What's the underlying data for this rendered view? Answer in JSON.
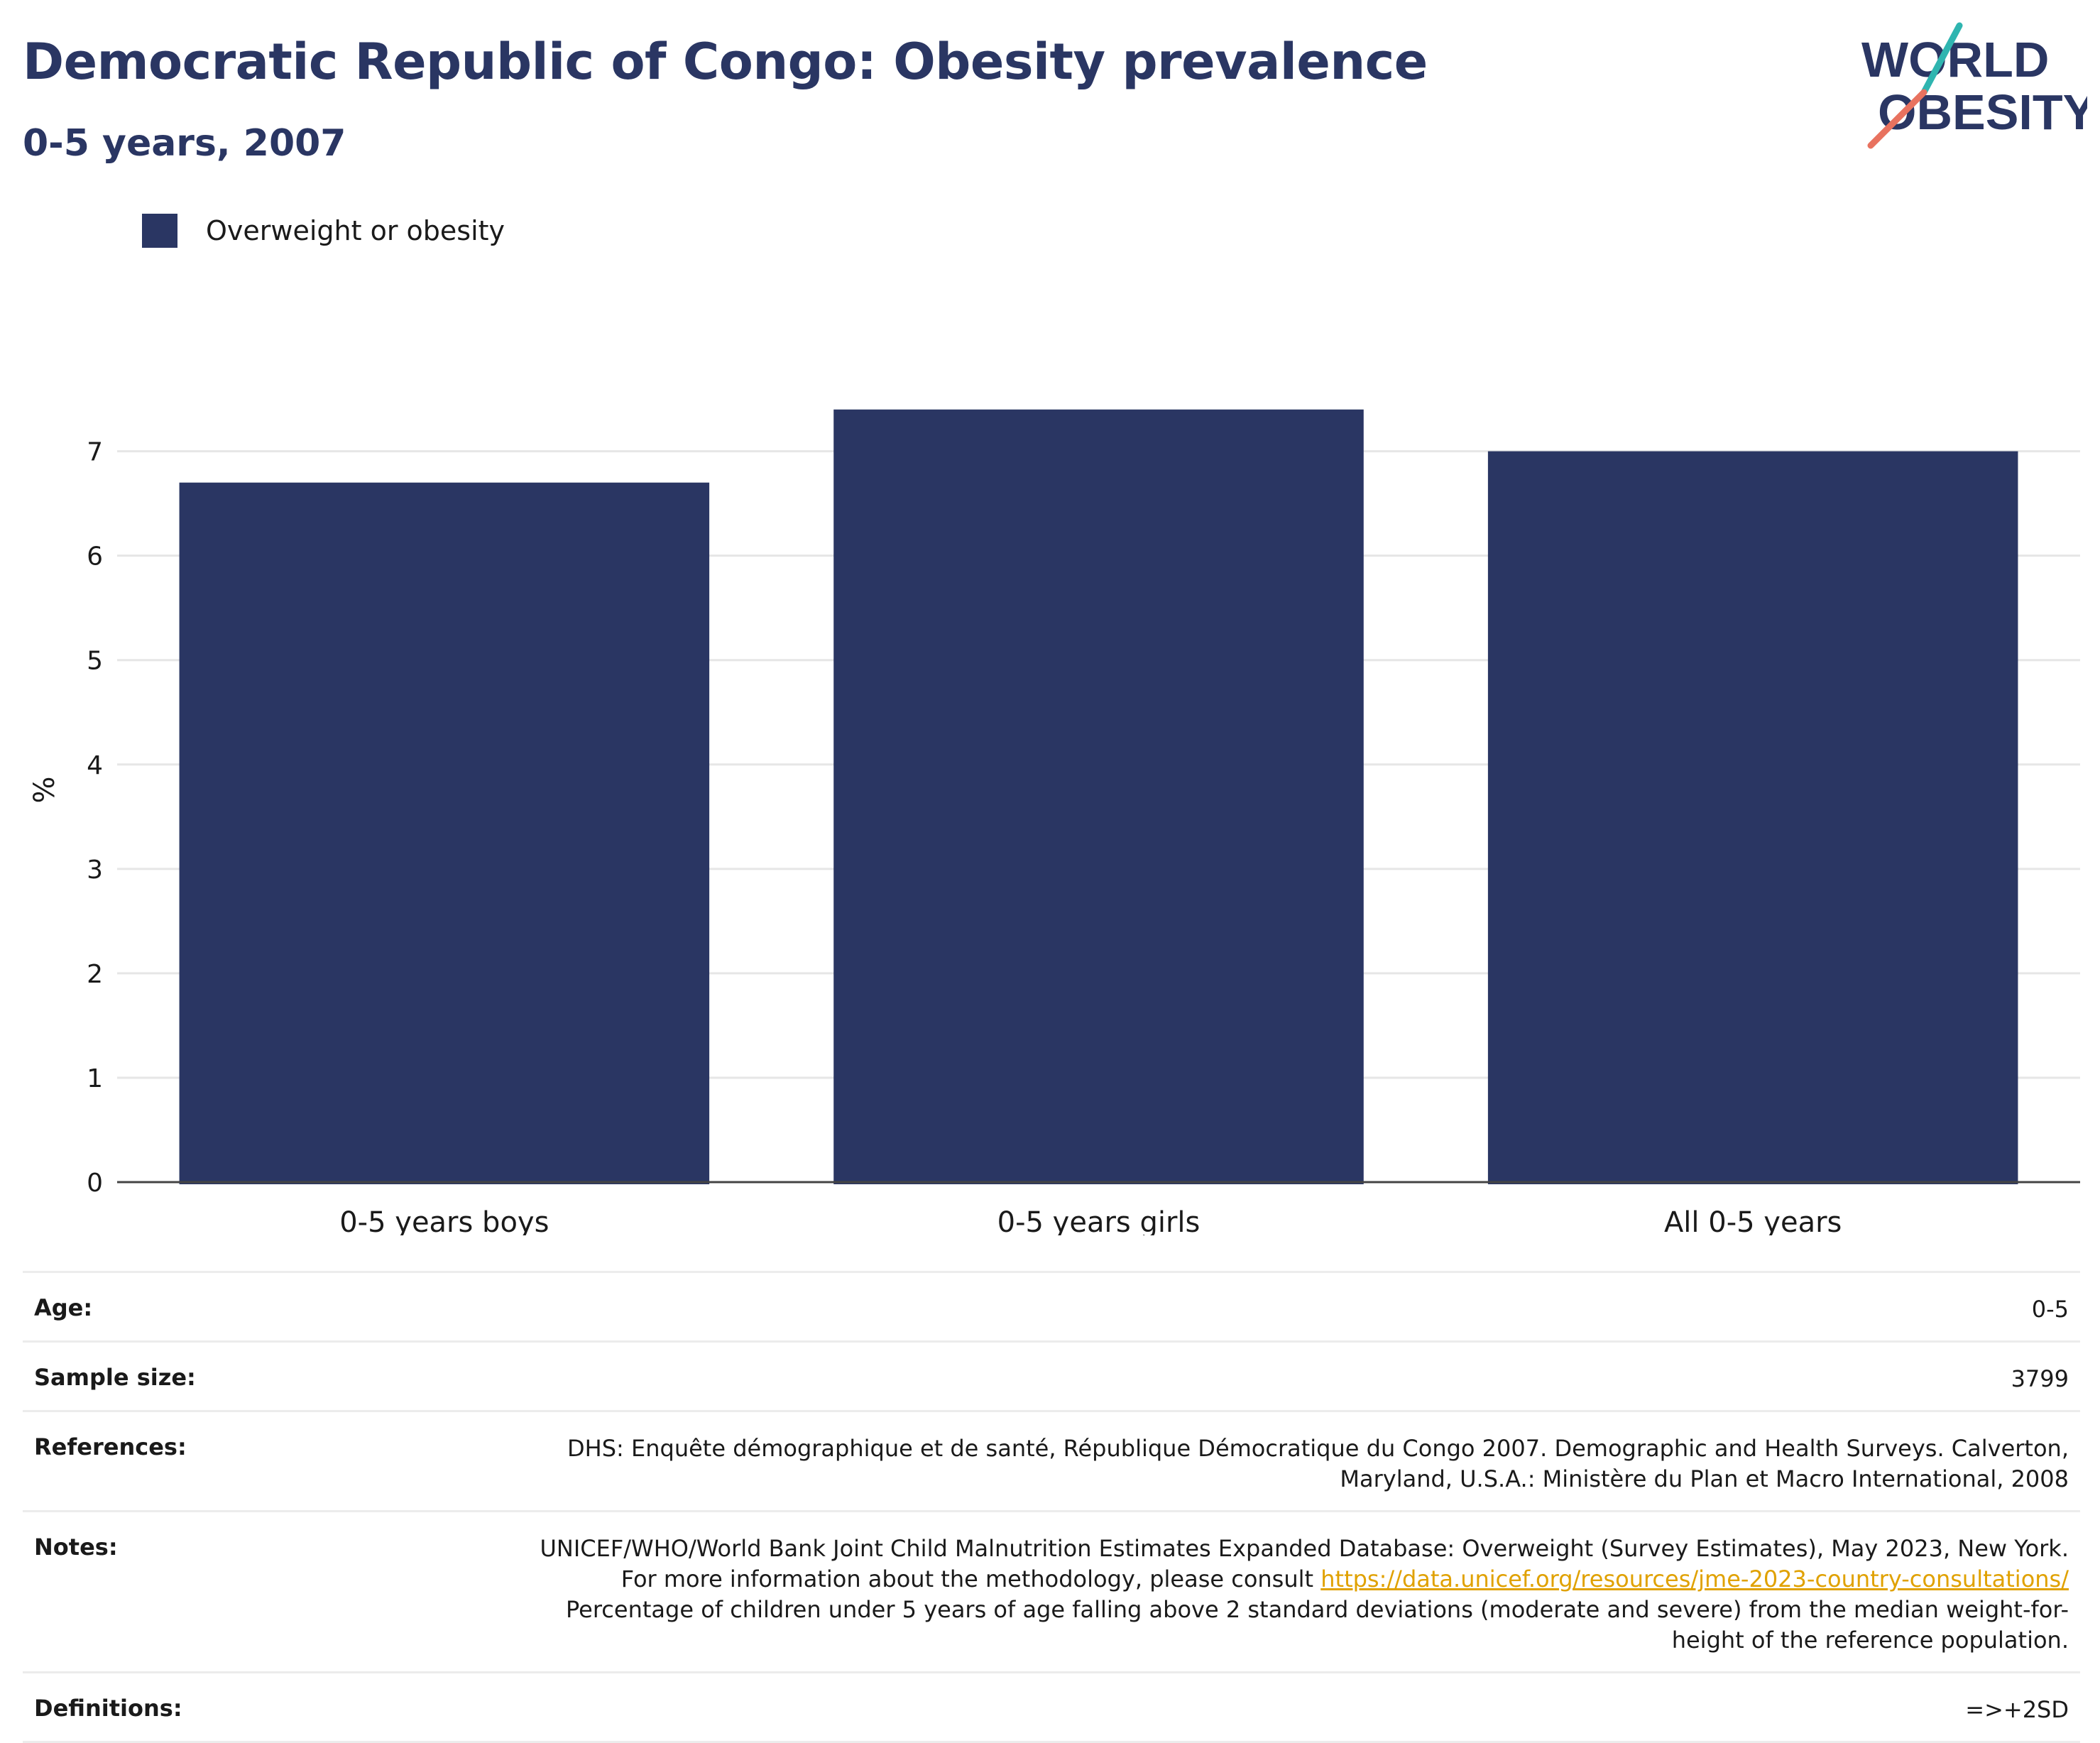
{
  "title": "Democratic Republic of Congo: Obesity prevalence",
  "subtitle": "0-5 years, 2007",
  "logo": {
    "line1": "WORLD",
    "line2": "OBESITY"
  },
  "colors": {
    "bar": "#2a3663",
    "title": "#2a3663",
    "link": "#e0a100",
    "logo_teal": "#2fb5b0",
    "logo_coral": "#e8725f"
  },
  "chart_data": {
    "type": "bar",
    "categories": [
      "0-5 years boys",
      "0-5 years girls",
      "All 0-5 years"
    ],
    "series": [
      {
        "name": "Overweight or obesity",
        "values": [
          6.7,
          7.4,
          7.0
        ]
      }
    ],
    "ylabel": "%",
    "ylim": [
      0,
      7.65
    ],
    "yticks": [
      0,
      1,
      2,
      3,
      4,
      5,
      6,
      7
    ],
    "grid": true,
    "legend": "top-left"
  },
  "info": [
    {
      "key": "Age:",
      "value": "0-5"
    },
    {
      "key": "Sample size:",
      "value": "3799"
    },
    {
      "key": "References:",
      "value": "DHS: Enquête démographique et de santé, République Démocratique du Congo 2007. Demographic and Health Surveys. Calverton, Maryland, U.S.A.: Ministère du Plan et Macro International, 2008"
    },
    {
      "key": "Notes:",
      "value_pre": "UNICEF/WHO/World Bank Joint Child Malnutrition Estimates Expanded Database: Overweight (Survey Estimates), May 2023, New York. For more information about the methodology, please consult ",
      "link": "https://data.unicef.org/resources/jme-2023-country-consultations/",
      "value_post": " Percentage of children under 5 years of age falling above 2 standard deviations (moderate and severe) from the median weight-for-height of the reference population."
    },
    {
      "key": "Definitions:",
      "value": "=>+2SD"
    }
  ]
}
